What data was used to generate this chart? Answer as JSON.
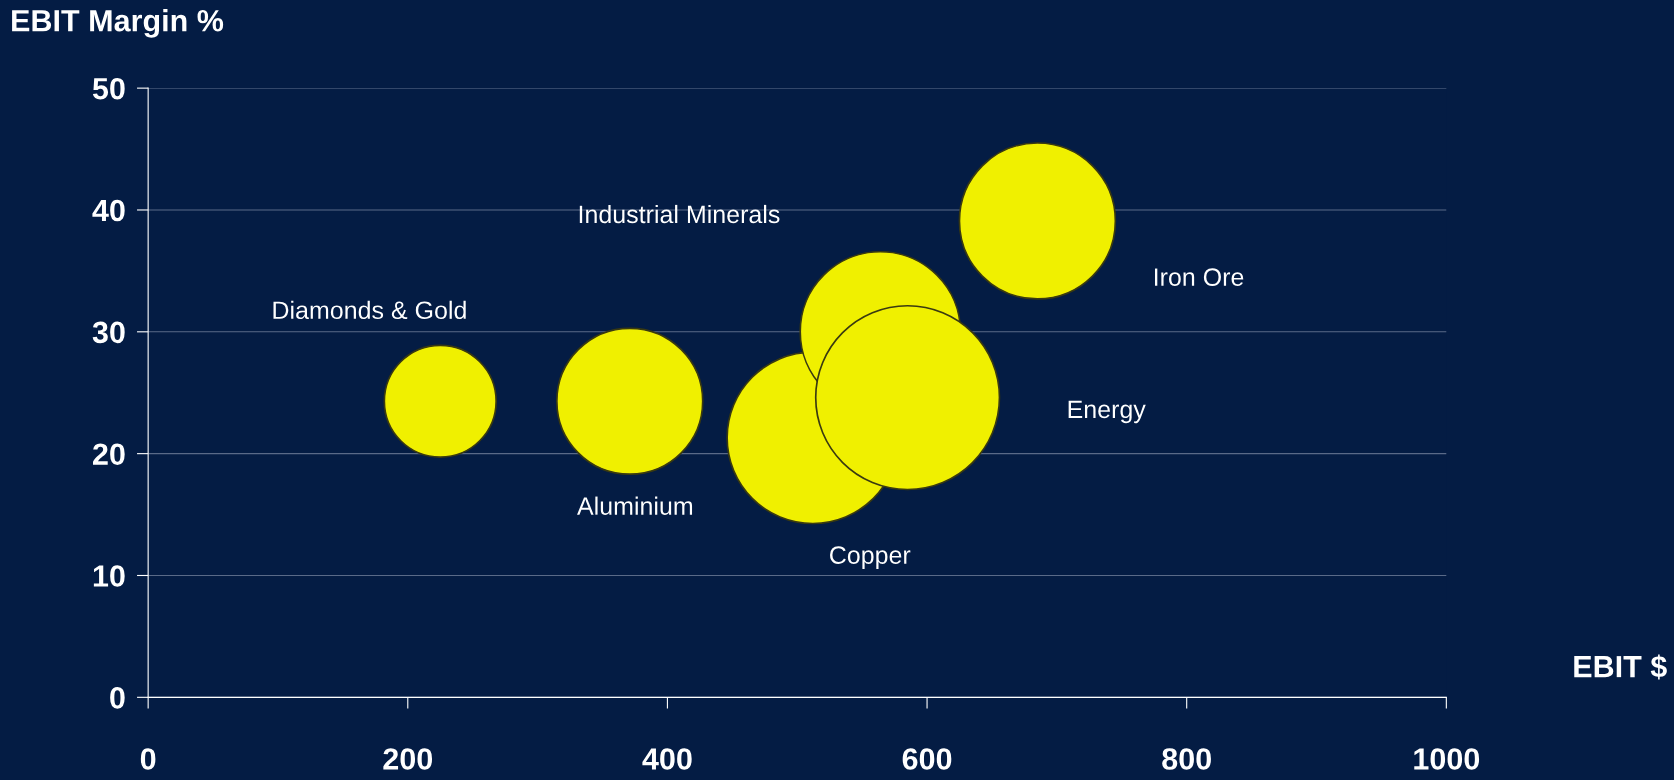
{
  "chart_data": {
    "type": "bubble",
    "xlabel": "EBIT $",
    "ylabel": "EBIT Margin %",
    "xlim": [
      0,
      1000
    ],
    "xticks": [
      0,
      200,
      400,
      600,
      800,
      1000
    ],
    "ylim": [
      0,
      50
    ],
    "yticks": [
      0,
      10,
      20,
      30,
      40,
      50
    ],
    "grid": "y",
    "legend": false,
    "series": [
      {
        "name": "Diamonds & Gold",
        "color": "#f0f000",
        "x": [
          225
        ],
        "values": [
          24.3
        ],
        "sizes": [
          0.37
        ]
      },
      {
        "name": "Aluminium",
        "color": "#f0f000",
        "x": [
          371
        ],
        "values": [
          24.3
        ],
        "sizes": [
          0.63
        ]
      },
      {
        "name": "Copper",
        "color": "#f0f000",
        "x": [
          512
        ],
        "values": [
          21.3
        ],
        "sizes": [
          0.87
        ]
      },
      {
        "name": "Industrial Minerals",
        "color": "#f0f000",
        "x": [
          564
        ],
        "values": [
          30.0
        ],
        "sizes": [
          0.76
        ]
      },
      {
        "name": "Energy",
        "color": "#f0f000",
        "x": [
          585
        ],
        "values": [
          24.6
        ],
        "sizes": [
          1.0
        ]
      },
      {
        "name": "Iron Ore",
        "color": "#f0f000",
        "x": [
          685
        ],
        "values": [
          39.1
        ],
        "sizes": [
          0.72
        ]
      }
    ]
  }
}
